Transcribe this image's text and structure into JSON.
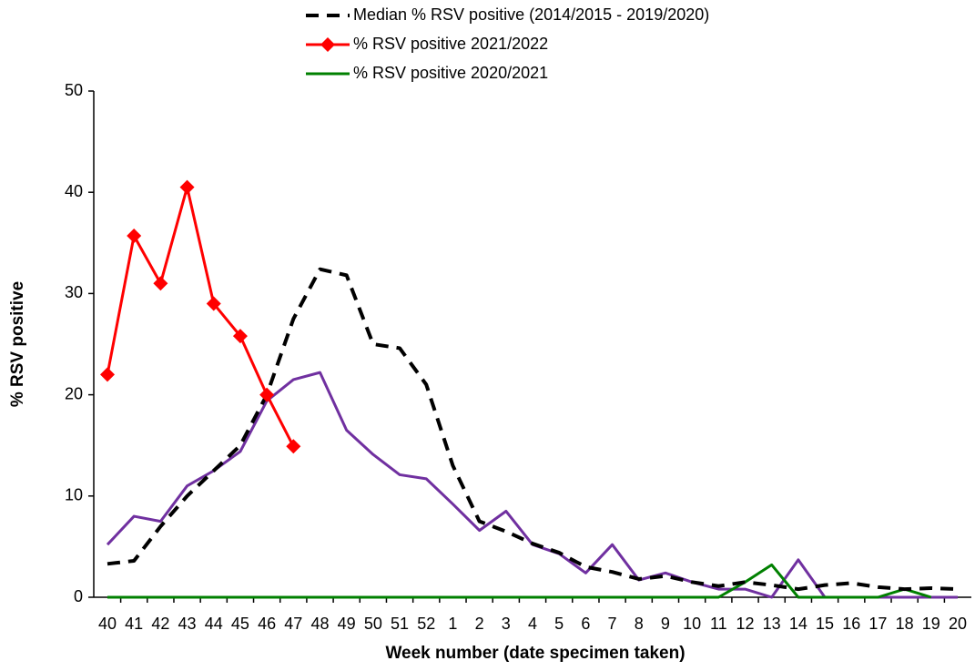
{
  "chart_data": {
    "type": "line",
    "x_label": "Week number (date specimen taken)",
    "y_label": "% RSV positive",
    "categories": [
      "40",
      "41",
      "42",
      "43",
      "44",
      "45",
      "46",
      "47",
      "48",
      "49",
      "50",
      "51",
      "52",
      "1",
      "2",
      "3",
      "4",
      "5",
      "6",
      "7",
      "8",
      "9",
      "10",
      "11",
      "12",
      "13",
      "14",
      "15",
      "16",
      "17",
      "18",
      "19",
      "20"
    ],
    "series": [
      {
        "name": "Median % RSV positive (2014/2015 - 2019/2020)",
        "color": "#000000",
        "dash": true,
        "marker": false,
        "values": [
          3.3,
          3.6,
          7,
          10,
          12.5,
          15,
          20,
          27.5,
          32.4,
          31.8,
          25,
          24.6,
          21,
          13,
          7.5,
          6.5,
          5.3,
          4.4,
          3,
          2.5,
          1.8,
          2.1,
          1.5,
          1.1,
          1.5,
          1.2,
          0.8,
          1.2,
          1.4,
          1,
          0.8,
          0.9,
          0.8
        ]
      },
      {
        "name": "% RSV positive 2021/2022",
        "color": "#ff0000",
        "dash": false,
        "marker": true,
        "values": [
          22,
          35.7,
          31,
          40.5,
          29,
          25.8,
          20,
          14.9,
          null,
          null,
          null,
          null,
          null,
          null,
          null,
          null,
          null,
          null,
          null,
          null,
          null,
          null,
          null,
          null,
          null,
          null,
          null,
          null,
          null,
          null,
          null,
          null,
          null
        ]
      },
      {
        "name": "% RSV positive 2020/2021",
        "color": "#008000",
        "dash": false,
        "marker": false,
        "values": [
          0,
          0,
          0,
          0,
          0,
          0,
          0,
          0,
          0,
          0,
          0,
          0,
          0,
          0,
          0,
          0,
          0,
          0,
          0,
          0,
          0,
          0,
          0,
          0,
          1.5,
          3.2,
          0,
          0,
          0,
          0,
          0.8,
          0,
          null
        ]
      },
      {
        "color": "#7030a0",
        "dash": false,
        "marker": false,
        "values": [
          5.2,
          8,
          7.5,
          11,
          12.5,
          14.4,
          19.4,
          21.5,
          22.2,
          16.5,
          14.1,
          12.1,
          11.7,
          9.2,
          6.6,
          8.5,
          5.2,
          4.3,
          2.4,
          5.2,
          1.7,
          2.4,
          1.5,
          0.8,
          0.8,
          0,
          3.7,
          0,
          0,
          0,
          0,
          0,
          0
        ]
      }
    ],
    "ylim": [
      0,
      50
    ],
    "yticks": [
      0,
      10,
      20,
      30,
      40,
      50
    ]
  }
}
